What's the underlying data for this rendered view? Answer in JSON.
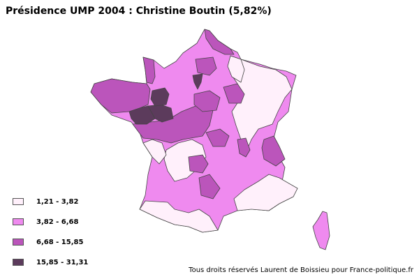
{
  "title": "Présidence UMP 2004 : Christine Boutin (5,82%)",
  "legend": [
    {
      "label": "1,21 - 3,82",
      "color": "#fff0fb"
    },
    {
      "label": "3,82 - 6,68",
      "color": "#ef8aef"
    },
    {
      "label": "6,68 - 15,85",
      "color": "#bb55bb"
    },
    {
      "label": "15,85 - 31,31",
      "color": "#5c3b5c"
    }
  ],
  "credit": "Tous droits réservés Laurent de Boissieu pour France-politique.fr"
}
